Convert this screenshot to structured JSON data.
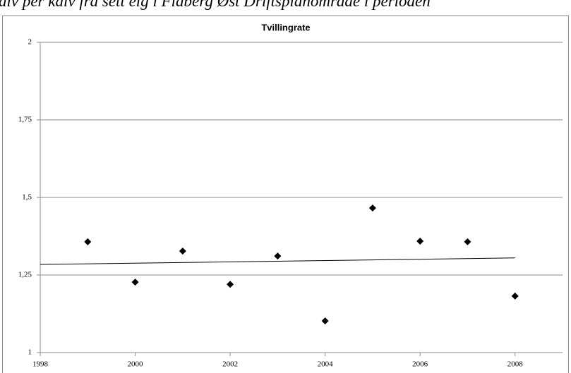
{
  "page_heading": "alv per kalv fra sett elg i Flaberg Øst Driftsplanområde i perioden",
  "chart_data": {
    "type": "scatter",
    "title": "Tvillingrate",
    "x": [
      1999,
      2000,
      2001,
      2002,
      2003,
      2004,
      2005,
      2006,
      2007,
      2008
    ],
    "values": [
      1.357,
      1.227,
      1.327,
      1.22,
      1.311,
      1.102,
      1.466,
      1.359,
      1.357,
      1.182
    ],
    "color": "#000000",
    "trendline": {
      "x": [
        1998,
        2008
      ],
      "values": [
        1.284,
        1.305
      ]
    },
    "xlim": [
      1998,
      2009
    ],
    "xticks": [
      1998,
      2000,
      2002,
      2004,
      2006,
      2008
    ],
    "ylim": [
      1,
      2
    ],
    "yticks": [
      1,
      {
        "value": 1.25,
        "label": "1,25"
      },
      {
        "value": 1.5,
        "label": "1,5"
      },
      {
        "value": 1.75,
        "label": "1,75"
      },
      2
    ],
    "grid": true
  }
}
